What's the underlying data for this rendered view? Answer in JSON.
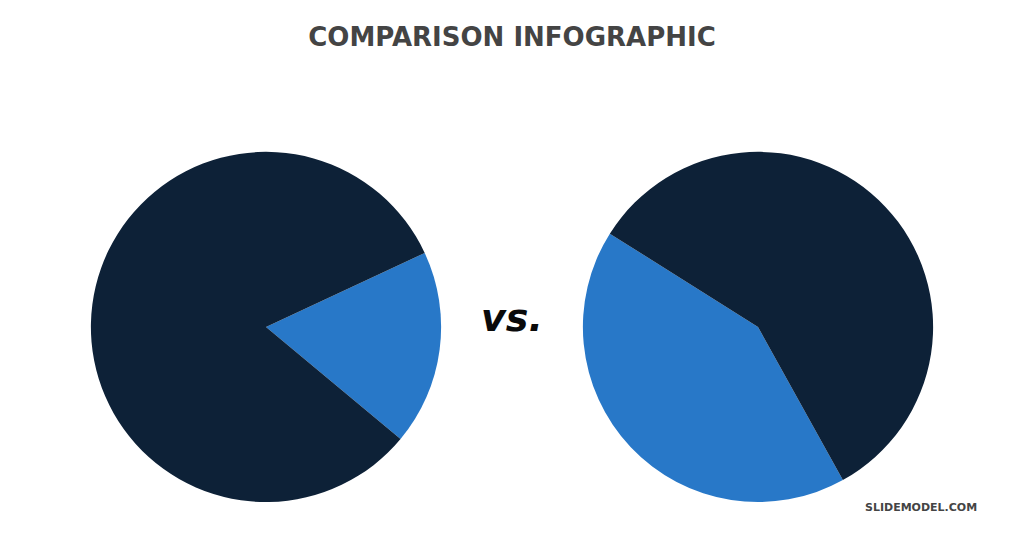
{
  "chart_data": [
    {
      "type": "pie",
      "title": "COMPARISON INFOGRAPHIC",
      "annotations": [
        "vs.",
        "SLIDEMODEL.COM"
      ],
      "values": [
        18,
        82
      ],
      "colors": [
        "#2878c8",
        "#0d2137"
      ]
    },
    {
      "type": "pie",
      "values": [
        42,
        58
      ],
      "colors": [
        "#2878c8",
        "#0d2137"
      ]
    }
  ]
}
